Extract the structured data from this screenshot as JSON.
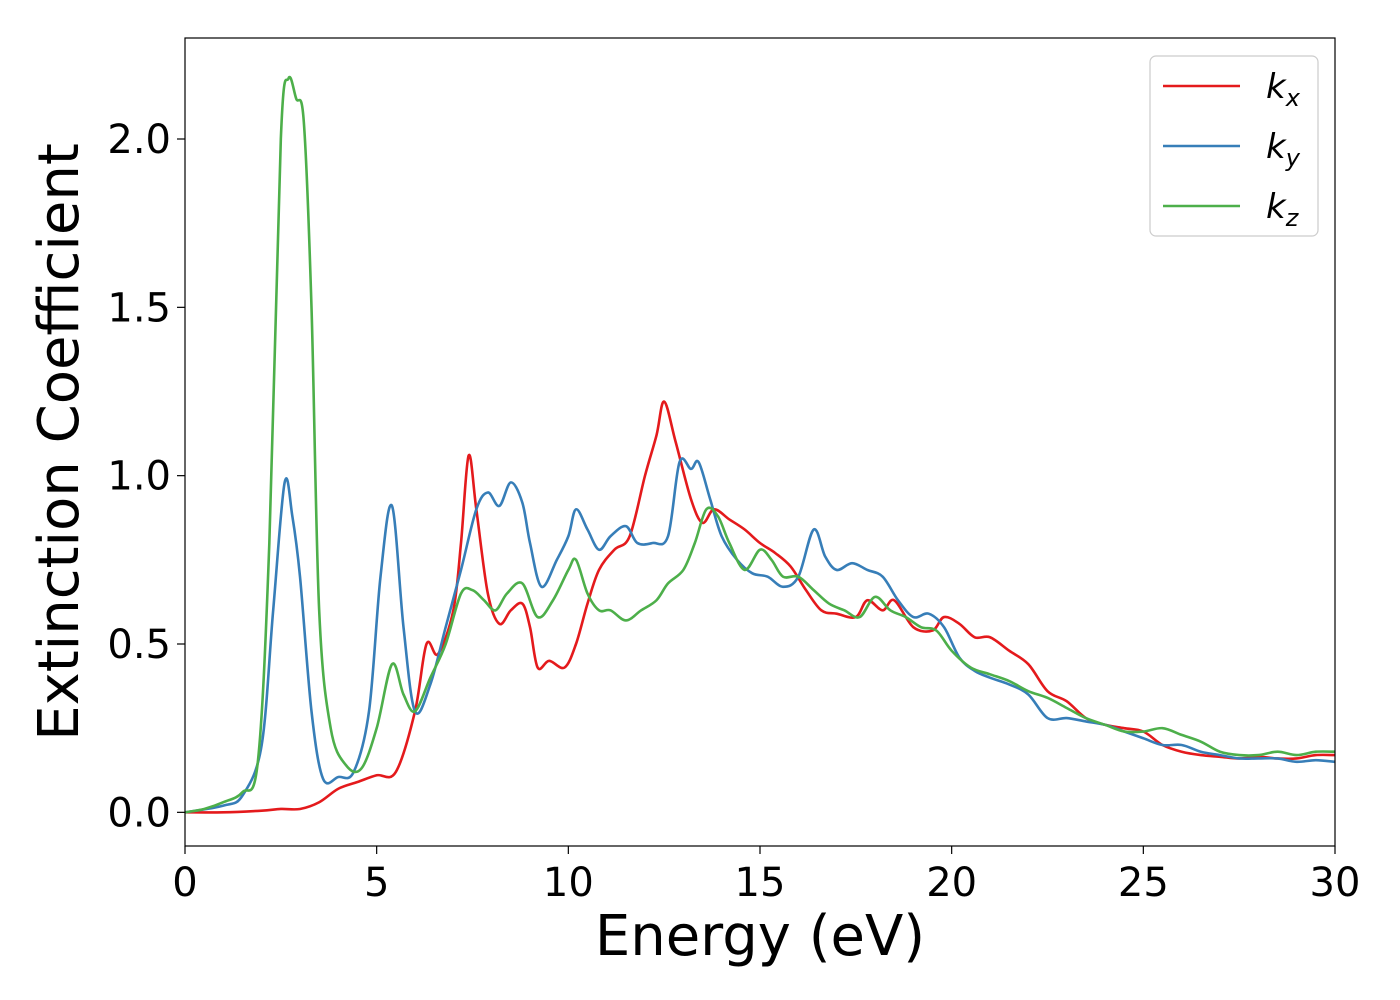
{
  "chart_data": {
    "type": "line",
    "title": "",
    "xlabel": "Energy (eV)",
    "ylabel": "Extinction Coefficient",
    "xlim": [
      0,
      30
    ],
    "ylim": [
      -0.1,
      2.3
    ],
    "xticks": [
      0,
      5,
      10,
      15,
      20,
      25,
      30
    ],
    "xtick_labels": [
      "0",
      "5",
      "10",
      "15",
      "20",
      "25",
      "30"
    ],
    "yticks": [
      0.0,
      0.5,
      1.0,
      1.5,
      2.0
    ],
    "ytick_labels": [
      "0.0",
      "0.5",
      "1.0",
      "1.5",
      "2.0"
    ],
    "grid": false,
    "legend_position": "top-right",
    "series": [
      {
        "name": "k_x",
        "label_base": "k",
        "label_sub": "x",
        "color": "#e41a1c",
        "points": [
          [
            0,
            0
          ],
          [
            1,
            0.0
          ],
          [
            2,
            0.005
          ],
          [
            2.5,
            0.01
          ],
          [
            3,
            0.01
          ],
          [
            3.5,
            0.03
          ],
          [
            4,
            0.07
          ],
          [
            4.5,
            0.09
          ],
          [
            5,
            0.11
          ],
          [
            5.5,
            0.12
          ],
          [
            6,
            0.3
          ],
          [
            6.3,
            0.5
          ],
          [
            6.6,
            0.47
          ],
          [
            7,
            0.6
          ],
          [
            7.2,
            0.8
          ],
          [
            7.4,
            1.06
          ],
          [
            7.6,
            0.9
          ],
          [
            7.9,
            0.65
          ],
          [
            8.2,
            0.56
          ],
          [
            8.5,
            0.6
          ],
          [
            8.8,
            0.62
          ],
          [
            9.0,
            0.55
          ],
          [
            9.2,
            0.43
          ],
          [
            9.5,
            0.45
          ],
          [
            9.9,
            0.43
          ],
          [
            10.2,
            0.5
          ],
          [
            10.5,
            0.62
          ],
          [
            10.8,
            0.72
          ],
          [
            11.2,
            0.78
          ],
          [
            11.6,
            0.82
          ],
          [
            12.0,
            1.0
          ],
          [
            12.3,
            1.12
          ],
          [
            12.5,
            1.22
          ],
          [
            12.8,
            1.1
          ],
          [
            13.2,
            0.93
          ],
          [
            13.5,
            0.86
          ],
          [
            13.8,
            0.9
          ],
          [
            14.2,
            0.87
          ],
          [
            14.6,
            0.84
          ],
          [
            15.0,
            0.8
          ],
          [
            15.4,
            0.77
          ],
          [
            15.8,
            0.73
          ],
          [
            16.2,
            0.66
          ],
          [
            16.6,
            0.6
          ],
          [
            17.0,
            0.59
          ],
          [
            17.5,
            0.58
          ],
          [
            17.8,
            0.63
          ],
          [
            18.2,
            0.6
          ],
          [
            18.5,
            0.63
          ],
          [
            19.0,
            0.55
          ],
          [
            19.5,
            0.54
          ],
          [
            19.8,
            0.58
          ],
          [
            20.2,
            0.56
          ],
          [
            20.6,
            0.52
          ],
          [
            21.0,
            0.52
          ],
          [
            21.5,
            0.48
          ],
          [
            22.0,
            0.44
          ],
          [
            22.5,
            0.36
          ],
          [
            23.0,
            0.33
          ],
          [
            23.5,
            0.28
          ],
          [
            24.0,
            0.26
          ],
          [
            24.5,
            0.25
          ],
          [
            25.0,
            0.24
          ],
          [
            25.5,
            0.2
          ],
          [
            26.0,
            0.18
          ],
          [
            26.5,
            0.17
          ],
          [
            27.0,
            0.165
          ],
          [
            27.5,
            0.16
          ],
          [
            28.0,
            0.165
          ],
          [
            28.5,
            0.16
          ],
          [
            29.0,
            0.16
          ],
          [
            29.5,
            0.17
          ],
          [
            30.0,
            0.17
          ]
        ]
      },
      {
        "name": "k_y",
        "label_base": "k",
        "label_sub": "y",
        "color": "#377eb8",
        "points": [
          [
            0,
            0
          ],
          [
            1,
            0.02
          ],
          [
            1.5,
            0.05
          ],
          [
            2.0,
            0.2
          ],
          [
            2.3,
            0.6
          ],
          [
            2.6,
            0.98
          ],
          [
            2.8,
            0.88
          ],
          [
            3.0,
            0.7
          ],
          [
            3.3,
            0.3
          ],
          [
            3.6,
            0.1
          ],
          [
            4.0,
            0.105
          ],
          [
            4.4,
            0.12
          ],
          [
            4.8,
            0.3
          ],
          [
            5.1,
            0.7
          ],
          [
            5.4,
            0.91
          ],
          [
            5.7,
            0.55
          ],
          [
            6.0,
            0.3
          ],
          [
            6.4,
            0.38
          ],
          [
            6.8,
            0.55
          ],
          [
            7.2,
            0.72
          ],
          [
            7.6,
            0.9
          ],
          [
            7.9,
            0.95
          ],
          [
            8.2,
            0.91
          ],
          [
            8.5,
            0.98
          ],
          [
            8.8,
            0.92
          ],
          [
            9.0,
            0.8
          ],
          [
            9.3,
            0.67
          ],
          [
            9.7,
            0.75
          ],
          [
            10.0,
            0.82
          ],
          [
            10.2,
            0.9
          ],
          [
            10.5,
            0.84
          ],
          [
            10.8,
            0.78
          ],
          [
            11.1,
            0.82
          ],
          [
            11.5,
            0.85
          ],
          [
            11.8,
            0.8
          ],
          [
            12.2,
            0.8
          ],
          [
            12.6,
            0.82
          ],
          [
            12.9,
            1.04
          ],
          [
            13.2,
            1.02
          ],
          [
            13.4,
            1.04
          ],
          [
            13.7,
            0.93
          ],
          [
            14.0,
            0.82
          ],
          [
            14.4,
            0.75
          ],
          [
            14.8,
            0.71
          ],
          [
            15.2,
            0.7
          ],
          [
            15.6,
            0.67
          ],
          [
            16.0,
            0.7
          ],
          [
            16.4,
            0.84
          ],
          [
            16.7,
            0.76
          ],
          [
            17.0,
            0.72
          ],
          [
            17.4,
            0.74
          ],
          [
            17.8,
            0.72
          ],
          [
            18.2,
            0.7
          ],
          [
            18.6,
            0.63
          ],
          [
            19.0,
            0.58
          ],
          [
            19.4,
            0.59
          ],
          [
            19.8,
            0.55
          ],
          [
            20.2,
            0.46
          ],
          [
            20.6,
            0.42
          ],
          [
            21.0,
            0.4
          ],
          [
            21.5,
            0.38
          ],
          [
            22.0,
            0.35
          ],
          [
            22.5,
            0.28
          ],
          [
            23.0,
            0.28
          ],
          [
            23.5,
            0.27
          ],
          [
            24.0,
            0.26
          ],
          [
            24.5,
            0.24
          ],
          [
            25.0,
            0.22
          ],
          [
            25.5,
            0.2
          ],
          [
            26.0,
            0.2
          ],
          [
            26.5,
            0.18
          ],
          [
            27.0,
            0.17
          ],
          [
            27.5,
            0.16
          ],
          [
            28.0,
            0.16
          ],
          [
            28.5,
            0.16
          ],
          [
            29.0,
            0.15
          ],
          [
            29.5,
            0.155
          ],
          [
            30.0,
            0.15
          ]
        ]
      },
      {
        "name": "k_z",
        "label_base": "k",
        "label_sub": "z",
        "color": "#4daf4a",
        "points": [
          [
            0,
            0
          ],
          [
            0.5,
            0.01
          ],
          [
            1.0,
            0.03
          ],
          [
            1.5,
            0.06
          ],
          [
            1.9,
            0.15
          ],
          [
            2.2,
            0.8
          ],
          [
            2.5,
            2.0
          ],
          [
            2.7,
            2.18
          ],
          [
            2.9,
            2.12
          ],
          [
            3.1,
            2.05
          ],
          [
            3.3,
            1.5
          ],
          [
            3.5,
            0.6
          ],
          [
            3.8,
            0.25
          ],
          [
            4.2,
            0.14
          ],
          [
            4.6,
            0.13
          ],
          [
            5.0,
            0.25
          ],
          [
            5.4,
            0.44
          ],
          [
            5.7,
            0.35
          ],
          [
            6.0,
            0.3
          ],
          [
            6.4,
            0.4
          ],
          [
            6.8,
            0.5
          ],
          [
            7.2,
            0.65
          ],
          [
            7.5,
            0.66
          ],
          [
            7.8,
            0.63
          ],
          [
            8.1,
            0.6
          ],
          [
            8.4,
            0.65
          ],
          [
            8.8,
            0.68
          ],
          [
            9.2,
            0.58
          ],
          [
            9.6,
            0.63
          ],
          [
            10.0,
            0.72
          ],
          [
            10.2,
            0.75
          ],
          [
            10.5,
            0.65
          ],
          [
            10.8,
            0.6
          ],
          [
            11.1,
            0.6
          ],
          [
            11.5,
            0.57
          ],
          [
            11.9,
            0.6
          ],
          [
            12.3,
            0.63
          ],
          [
            12.6,
            0.68
          ],
          [
            13.0,
            0.72
          ],
          [
            13.3,
            0.8
          ],
          [
            13.6,
            0.9
          ],
          [
            13.9,
            0.88
          ],
          [
            14.2,
            0.8
          ],
          [
            14.6,
            0.72
          ],
          [
            15.0,
            0.78
          ],
          [
            15.3,
            0.75
          ],
          [
            15.6,
            0.7
          ],
          [
            16.0,
            0.7
          ],
          [
            16.4,
            0.66
          ],
          [
            16.8,
            0.62
          ],
          [
            17.2,
            0.6
          ],
          [
            17.6,
            0.58
          ],
          [
            18.0,
            0.64
          ],
          [
            18.4,
            0.6
          ],
          [
            18.8,
            0.58
          ],
          [
            19.2,
            0.55
          ],
          [
            19.6,
            0.54
          ],
          [
            20.0,
            0.48
          ],
          [
            20.5,
            0.43
          ],
          [
            21.0,
            0.41
          ],
          [
            21.5,
            0.39
          ],
          [
            22.0,
            0.36
          ],
          [
            22.5,
            0.34
          ],
          [
            23.0,
            0.31
          ],
          [
            23.5,
            0.28
          ],
          [
            24.0,
            0.26
          ],
          [
            24.5,
            0.24
          ],
          [
            25.0,
            0.24
          ],
          [
            25.5,
            0.25
          ],
          [
            26.0,
            0.23
          ],
          [
            26.5,
            0.21
          ],
          [
            27.0,
            0.18
          ],
          [
            27.5,
            0.17
          ],
          [
            28.0,
            0.17
          ],
          [
            28.5,
            0.18
          ],
          [
            29.0,
            0.17
          ],
          [
            29.5,
            0.18
          ],
          [
            30.0,
            0.18
          ]
        ]
      }
    ]
  }
}
